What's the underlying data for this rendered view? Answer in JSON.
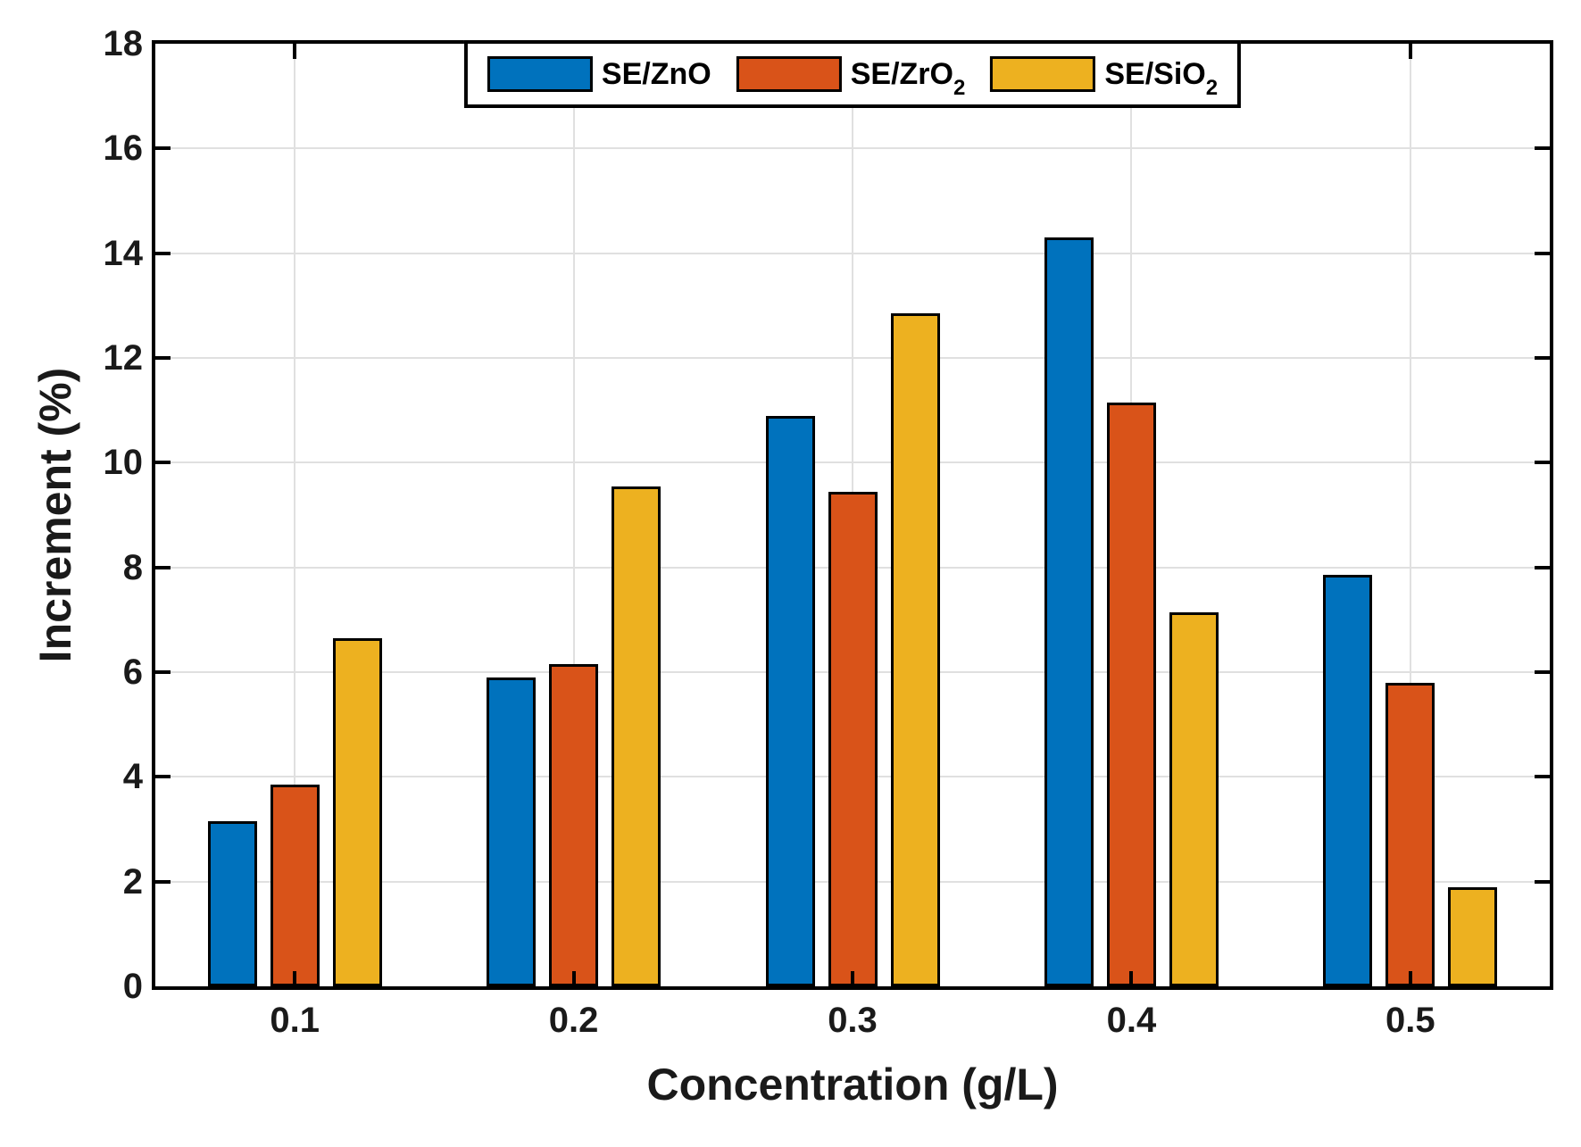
{
  "figure": {
    "background": "#ffffff"
  },
  "chart_data": {
    "type": "bar",
    "title": "",
    "xlabel": "Concentration (g/L)",
    "ylabel": "Increment (%)",
    "categories": [
      "0.1",
      "0.2",
      "0.3",
      "0.4",
      "0.5"
    ],
    "series": [
      {
        "name": "SE/ZnO",
        "label_base": "SE/ZnO",
        "label_sub": "",
        "color": "#0072BD",
        "values": [
          3.15,
          5.9,
          10.9,
          14.3,
          7.85
        ]
      },
      {
        "name": "SE/ZrO2",
        "label_base": "SE/ZrO",
        "label_sub": "2",
        "color": "#D95319",
        "values": [
          3.85,
          6.15,
          9.45,
          11.15,
          5.8
        ]
      },
      {
        "name": "SE/SiO2",
        "label_base": "SE/SiO",
        "label_sub": "2",
        "color": "#EDB120",
        "values": [
          6.65,
          9.55,
          12.85,
          7.15,
          1.9
        ]
      }
    ],
    "ylim": [
      0,
      18
    ],
    "ytick_step": 2,
    "grid": true,
    "legend_position": "north",
    "axis_color": "#000000",
    "grid_color": "#e0e0e0",
    "tick_label_color": "#1a1a1a",
    "bar_edge_color": "#000000"
  }
}
